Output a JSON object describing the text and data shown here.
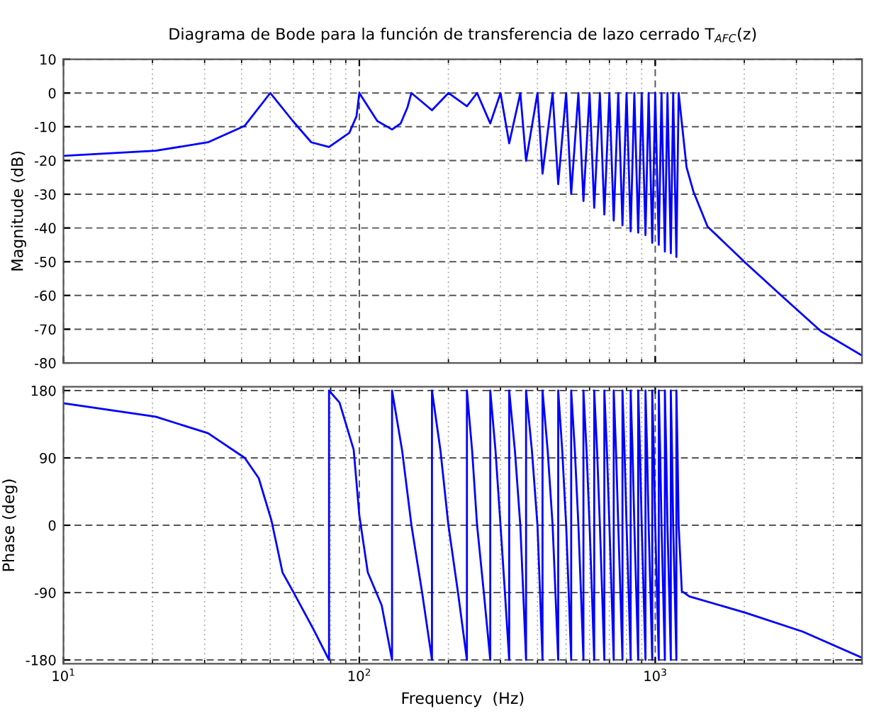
{
  "chart_data": [
    {
      "type": "line",
      "title": "Diagrama de Bode para la función de transferencia de lazo cerrado T$_{AFC}$(z)",
      "ylabel": "Magnitude (dB)",
      "log": "x",
      "grid": true,
      "tick_labels": "y",
      "xlim": [
        10,
        5000
      ],
      "ylim": [
        -80,
        10
      ],
      "xticks": [
        {
          "value": 10,
          "label": null
        },
        {
          "value": 20,
          "label": null
        },
        {
          "value": 30,
          "label": null
        },
        {
          "value": 40,
          "label": null
        },
        {
          "value": 50,
          "label": null
        },
        {
          "value": 60,
          "label": null
        },
        {
          "value": 70,
          "label": null
        },
        {
          "value": 80,
          "label": null
        },
        {
          "value": 90,
          "label": null
        },
        {
          "value": 100,
          "label": null
        },
        {
          "value": 200,
          "label": null
        },
        {
          "value": 300,
          "label": null
        },
        {
          "value": 400,
          "label": null
        },
        {
          "value": 500,
          "label": null
        },
        {
          "value": 600,
          "label": null
        },
        {
          "value": 700,
          "label": null
        },
        {
          "value": 800,
          "label": null
        },
        {
          "value": 900,
          "label": null
        },
        {
          "value": 1000,
          "label": null
        },
        {
          "value": 2000,
          "label": null
        },
        {
          "value": 3000,
          "label": null
        },
        {
          "value": 4000,
          "label": null
        },
        {
          "value": 5000,
          "label": null
        }
      ],
      "yticks": [
        -80,
        -70,
        -60,
        -50,
        -40,
        -30,
        -20,
        -10,
        0,
        10
      ],
      "series": [
        {
          "color": "#0000ff",
          "line_style": "solid",
          "x": [
            10,
            20.5,
            30.8,
            41,
            50,
            59.6,
            68.8,
            79,
            92.5,
            97.8,
            100,
            115,
            129,
            138,
            145.5,
            150,
            176,
            200,
            231,
            250,
            277,
            300,
            321,
            350,
            366,
            400,
            416,
            450,
            470,
            500,
            520,
            550,
            572,
            600,
            622,
            650,
            673,
            700,
            724,
            750,
            775,
            800,
            826,
            850,
            876,
            900,
            927,
            950,
            977,
            1000,
            1028,
            1050,
            1078,
            1100,
            1129,
            1150,
            1179,
            1200,
            1276,
            1346,
            1503,
            2024,
            2697,
            3630,
            5000
          ],
          "values": [
            -18.6,
            -17.1,
            -14.6,
            -9.7,
            0,
            -8.3,
            -14.6,
            -16,
            -11.8,
            -6.9,
            0,
            -8.3,
            -10.8,
            -9,
            -4.2,
            0,
            -5.1,
            0,
            -3.9,
            0,
            -9,
            0,
            -14.9,
            0,
            -20.1,
            0,
            -23.9,
            0,
            -27,
            0,
            -29.9,
            0,
            -32,
            0,
            -34,
            0,
            -36,
            0,
            -37.8,
            0,
            -39.2,
            0,
            -41,
            0,
            -41.4,
            0,
            -42.1,
            0,
            -44.4,
            0,
            -45,
            0,
            -47,
            0,
            -47.5,
            0,
            -48.6,
            0,
            -22,
            -29.2,
            -39.6,
            -50.4,
            -60.4,
            -70.6,
            -77.8
          ]
        }
      ]
    },
    {
      "type": "line",
      "xlabel": "Frequency  (Hz)",
      "ylabel": "Phase (deg)",
      "log": "x",
      "grid": true,
      "xlim": [
        10,
        5000
      ],
      "ylim": [
        -185,
        185
      ],
      "xticks": [
        {
          "value": 10,
          "label": "10$^{1}$"
        },
        {
          "value": 20,
          "label": null
        },
        {
          "value": 30,
          "label": null
        },
        {
          "value": 40,
          "label": null
        },
        {
          "value": 50,
          "label": null
        },
        {
          "value": 60,
          "label": null
        },
        {
          "value": 70,
          "label": null
        },
        {
          "value": 80,
          "label": null
        },
        {
          "value": 90,
          "label": null
        },
        {
          "value": 100,
          "label": "10$^{2}$"
        },
        {
          "value": 200,
          "label": null
        },
        {
          "value": 300,
          "label": null
        },
        {
          "value": 400,
          "label": null
        },
        {
          "value": 500,
          "label": null
        },
        {
          "value": 600,
          "label": null
        },
        {
          "value": 700,
          "label": null
        },
        {
          "value": 800,
          "label": null
        },
        {
          "value": 900,
          "label": null
        },
        {
          "value": 1000,
          "label": "10$^{3}$"
        },
        {
          "value": 2000,
          "label": null
        },
        {
          "value": 3000,
          "label": null
        },
        {
          "value": 4000,
          "label": null
        },
        {
          "value": 5000,
          "label": null
        }
      ],
      "yticks": [
        -180,
        -90,
        0,
        90,
        180
      ],
      "series": [
        {
          "color": "#0000ff",
          "line_style": "solid",
          "x": [
            10,
            20.5,
            30.8,
            41,
            45.7,
            50.5,
            55,
            59.6,
            70,
            79,
            79,
            85.7,
            95.7,
            100,
            106.8,
            119,
            129,
            129,
            139.5,
            150,
            163,
            176,
            176,
            188,
            200,
            215.5,
            231,
            231,
            240.5,
            250,
            263.5,
            277,
            277,
            288.5,
            300,
            310.5,
            321,
            321,
            335.5,
            350,
            358,
            366,
            366,
            383,
            400,
            408,
            416,
            416,
            433,
            450,
            460,
            470,
            470,
            485,
            500,
            510,
            520,
            520,
            535,
            550,
            561,
            572,
            572,
            586,
            600,
            611,
            622,
            622,
            636,
            650,
            661.5,
            673,
            673,
            686.5,
            700,
            712,
            724,
            724,
            737,
            750,
            762.5,
            775,
            775,
            787.5,
            800,
            813,
            826,
            826,
            838,
            850,
            863,
            876,
            876,
            888,
            900,
            913.5,
            927,
            927,
            938.5,
            950,
            963.5,
            977,
            977,
            988.5,
            1000,
            1014,
            1028,
            1028,
            1039,
            1050,
            1064,
            1078,
            1078,
            1089,
            1100,
            1114.5,
            1129,
            1129,
            1139.5,
            1150,
            1164.5,
            1179,
            1179,
            1189.5,
            1200,
            1230,
            1303,
            2024,
            3147,
            5000
          ],
          "values": [
            163,
            145,
            123,
            90,
            63,
            6,
            -63,
            -88,
            -139,
            -180,
            180,
            164,
            101,
            13,
            -63,
            -107,
            -180,
            180,
            100,
            0,
            -90,
            -180,
            180,
            100,
            0,
            -90,
            -180,
            180,
            100,
            0,
            -90,
            -180,
            180,
            100,
            0,
            -90,
            -180,
            180,
            100,
            0,
            -90,
            -180,
            180,
            100,
            0,
            -90,
            -180,
            180,
            100,
            0,
            -90,
            -180,
            180,
            100,
            0,
            -90,
            -180,
            180,
            100,
            0,
            -90,
            -180,
            180,
            100,
            0,
            -90,
            -180,
            180,
            100,
            0,
            -90,
            -180,
            180,
            100,
            0,
            -90,
            -180,
            180,
            100,
            0,
            -90,
            -180,
            180,
            100,
            0,
            -90,
            -180,
            180,
            100,
            0,
            -90,
            -180,
            180,
            100,
            0,
            -90,
            -180,
            180,
            100,
            0,
            -90,
            -180,
            180,
            100,
            0,
            -90,
            -180,
            180,
            100,
            0,
            -90,
            -180,
            180,
            100,
            0,
            -90,
            -180,
            180,
            100,
            0,
            -90,
            -180,
            180,
            100,
            0,
            -88,
            -95,
            -117,
            -142,
            -177
          ]
        }
      ]
    }
  ]
}
